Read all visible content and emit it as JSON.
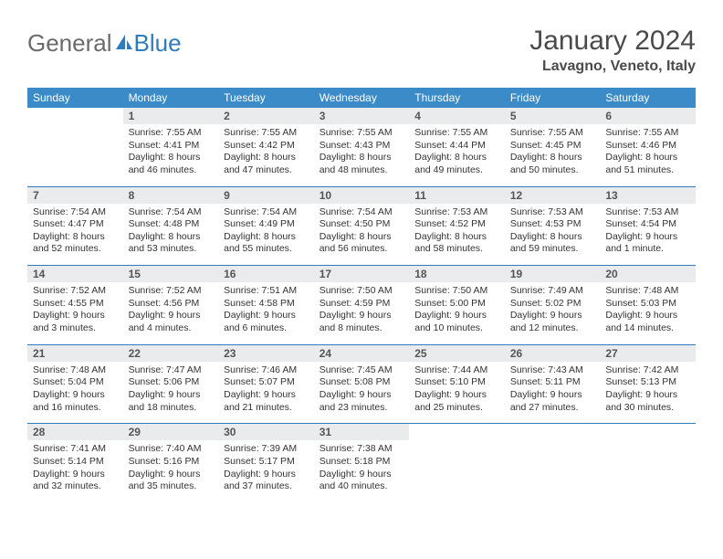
{
  "brand": {
    "part1": "General",
    "part2": "Blue"
  },
  "title": "January 2024",
  "location": "Lavagno, Veneto, Italy",
  "colors": {
    "header_bg": "#3b8bc9",
    "header_text": "#ffffff",
    "daynum_bg": "#e9ebec",
    "rule": "#2f7bbf",
    "brand_grey": "#6b6b6b",
    "brand_blue": "#2f7bbf"
  },
  "dow": [
    "Sunday",
    "Monday",
    "Tuesday",
    "Wednesday",
    "Thursday",
    "Friday",
    "Saturday"
  ],
  "weeks": [
    [
      null,
      {
        "n": "1",
        "sr": "Sunrise: 7:55 AM",
        "ss": "Sunset: 4:41 PM",
        "dl": "Daylight: 8 hours and 46 minutes."
      },
      {
        "n": "2",
        "sr": "Sunrise: 7:55 AM",
        "ss": "Sunset: 4:42 PM",
        "dl": "Daylight: 8 hours and 47 minutes."
      },
      {
        "n": "3",
        "sr": "Sunrise: 7:55 AM",
        "ss": "Sunset: 4:43 PM",
        "dl": "Daylight: 8 hours and 48 minutes."
      },
      {
        "n": "4",
        "sr": "Sunrise: 7:55 AM",
        "ss": "Sunset: 4:44 PM",
        "dl": "Daylight: 8 hours and 49 minutes."
      },
      {
        "n": "5",
        "sr": "Sunrise: 7:55 AM",
        "ss": "Sunset: 4:45 PM",
        "dl": "Daylight: 8 hours and 50 minutes."
      },
      {
        "n": "6",
        "sr": "Sunrise: 7:55 AM",
        "ss": "Sunset: 4:46 PM",
        "dl": "Daylight: 8 hours and 51 minutes."
      }
    ],
    [
      {
        "n": "7",
        "sr": "Sunrise: 7:54 AM",
        "ss": "Sunset: 4:47 PM",
        "dl": "Daylight: 8 hours and 52 minutes."
      },
      {
        "n": "8",
        "sr": "Sunrise: 7:54 AM",
        "ss": "Sunset: 4:48 PM",
        "dl": "Daylight: 8 hours and 53 minutes."
      },
      {
        "n": "9",
        "sr": "Sunrise: 7:54 AM",
        "ss": "Sunset: 4:49 PM",
        "dl": "Daylight: 8 hours and 55 minutes."
      },
      {
        "n": "10",
        "sr": "Sunrise: 7:54 AM",
        "ss": "Sunset: 4:50 PM",
        "dl": "Daylight: 8 hours and 56 minutes."
      },
      {
        "n": "11",
        "sr": "Sunrise: 7:53 AM",
        "ss": "Sunset: 4:52 PM",
        "dl": "Daylight: 8 hours and 58 minutes."
      },
      {
        "n": "12",
        "sr": "Sunrise: 7:53 AM",
        "ss": "Sunset: 4:53 PM",
        "dl": "Daylight: 8 hours and 59 minutes."
      },
      {
        "n": "13",
        "sr": "Sunrise: 7:53 AM",
        "ss": "Sunset: 4:54 PM",
        "dl": "Daylight: 9 hours and 1 minute."
      }
    ],
    [
      {
        "n": "14",
        "sr": "Sunrise: 7:52 AM",
        "ss": "Sunset: 4:55 PM",
        "dl": "Daylight: 9 hours and 3 minutes."
      },
      {
        "n": "15",
        "sr": "Sunrise: 7:52 AM",
        "ss": "Sunset: 4:56 PM",
        "dl": "Daylight: 9 hours and 4 minutes."
      },
      {
        "n": "16",
        "sr": "Sunrise: 7:51 AM",
        "ss": "Sunset: 4:58 PM",
        "dl": "Daylight: 9 hours and 6 minutes."
      },
      {
        "n": "17",
        "sr": "Sunrise: 7:50 AM",
        "ss": "Sunset: 4:59 PM",
        "dl": "Daylight: 9 hours and 8 minutes."
      },
      {
        "n": "18",
        "sr": "Sunrise: 7:50 AM",
        "ss": "Sunset: 5:00 PM",
        "dl": "Daylight: 9 hours and 10 minutes."
      },
      {
        "n": "19",
        "sr": "Sunrise: 7:49 AM",
        "ss": "Sunset: 5:02 PM",
        "dl": "Daylight: 9 hours and 12 minutes."
      },
      {
        "n": "20",
        "sr": "Sunrise: 7:48 AM",
        "ss": "Sunset: 5:03 PM",
        "dl": "Daylight: 9 hours and 14 minutes."
      }
    ],
    [
      {
        "n": "21",
        "sr": "Sunrise: 7:48 AM",
        "ss": "Sunset: 5:04 PM",
        "dl": "Daylight: 9 hours and 16 minutes."
      },
      {
        "n": "22",
        "sr": "Sunrise: 7:47 AM",
        "ss": "Sunset: 5:06 PM",
        "dl": "Daylight: 9 hours and 18 minutes."
      },
      {
        "n": "23",
        "sr": "Sunrise: 7:46 AM",
        "ss": "Sunset: 5:07 PM",
        "dl": "Daylight: 9 hours and 21 minutes."
      },
      {
        "n": "24",
        "sr": "Sunrise: 7:45 AM",
        "ss": "Sunset: 5:08 PM",
        "dl": "Daylight: 9 hours and 23 minutes."
      },
      {
        "n": "25",
        "sr": "Sunrise: 7:44 AM",
        "ss": "Sunset: 5:10 PM",
        "dl": "Daylight: 9 hours and 25 minutes."
      },
      {
        "n": "26",
        "sr": "Sunrise: 7:43 AM",
        "ss": "Sunset: 5:11 PM",
        "dl": "Daylight: 9 hours and 27 minutes."
      },
      {
        "n": "27",
        "sr": "Sunrise: 7:42 AM",
        "ss": "Sunset: 5:13 PM",
        "dl": "Daylight: 9 hours and 30 minutes."
      }
    ],
    [
      {
        "n": "28",
        "sr": "Sunrise: 7:41 AM",
        "ss": "Sunset: 5:14 PM",
        "dl": "Daylight: 9 hours and 32 minutes."
      },
      {
        "n": "29",
        "sr": "Sunrise: 7:40 AM",
        "ss": "Sunset: 5:16 PM",
        "dl": "Daylight: 9 hours and 35 minutes."
      },
      {
        "n": "30",
        "sr": "Sunrise: 7:39 AM",
        "ss": "Sunset: 5:17 PM",
        "dl": "Daylight: 9 hours and 37 minutes."
      },
      {
        "n": "31",
        "sr": "Sunrise: 7:38 AM",
        "ss": "Sunset: 5:18 PM",
        "dl": "Daylight: 9 hours and 40 minutes."
      },
      null,
      null,
      null
    ]
  ]
}
